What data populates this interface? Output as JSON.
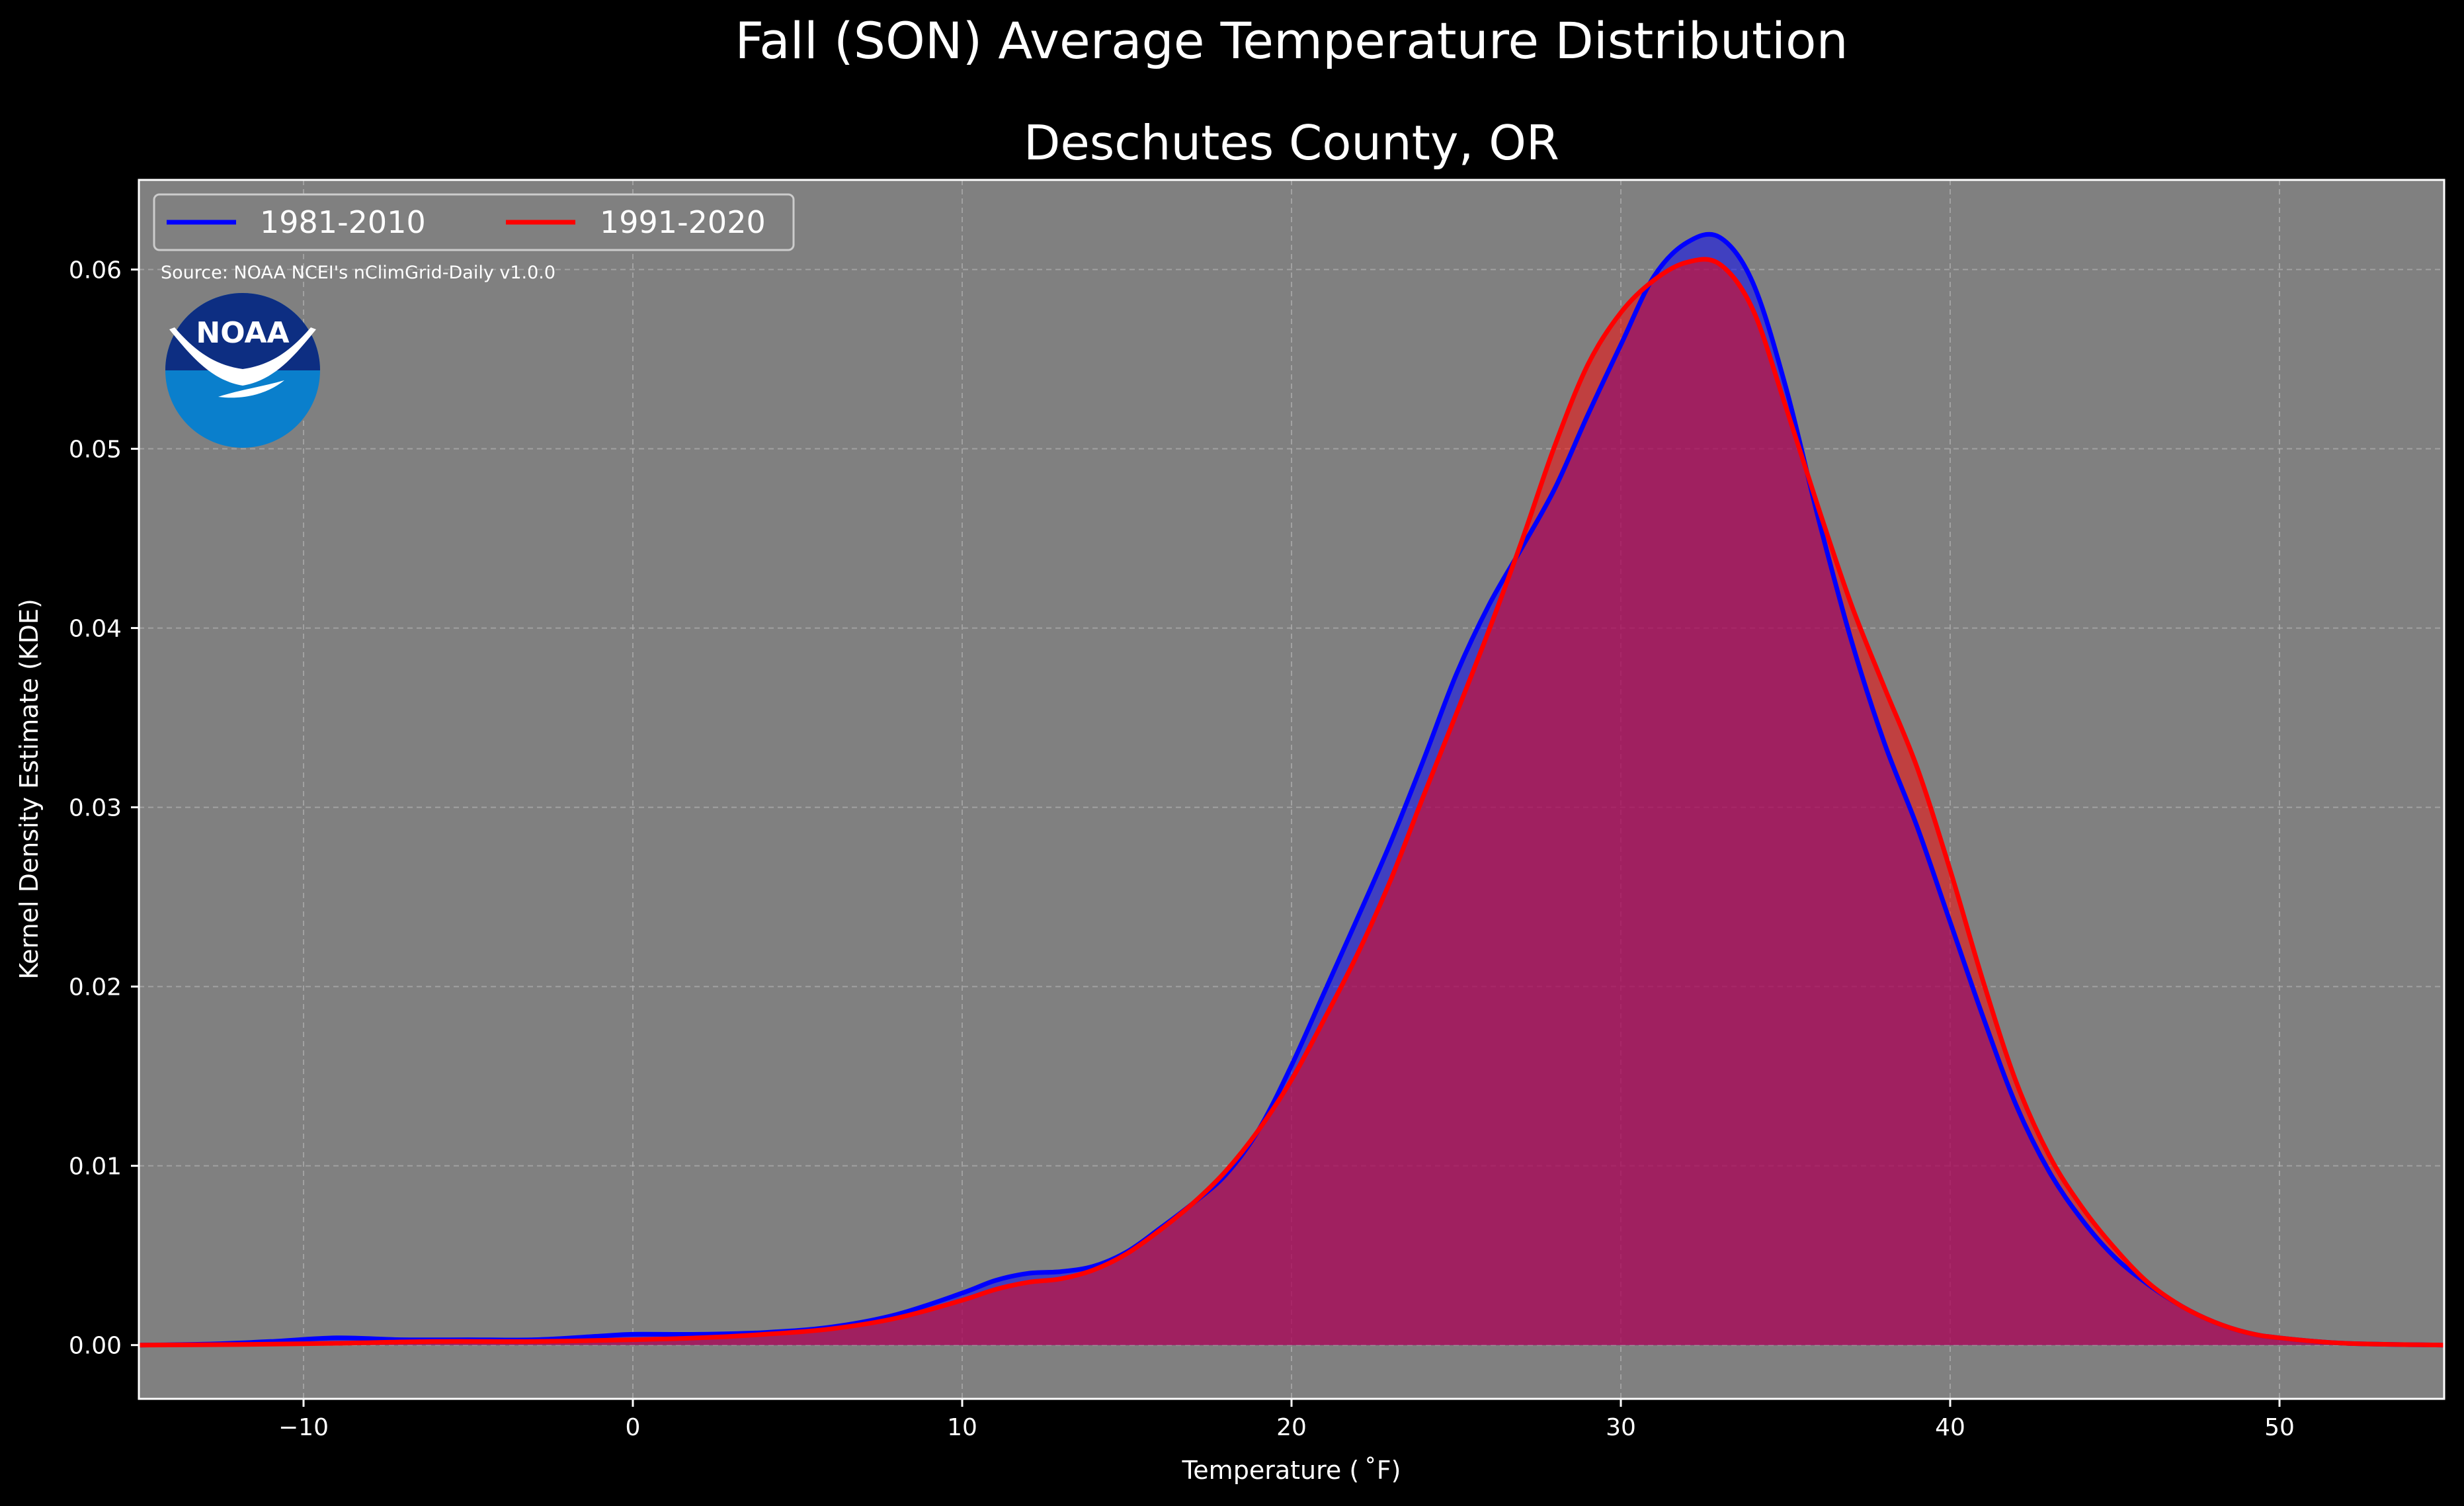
{
  "chart_data": {
    "type": "area",
    "title": "Fall (SON) Average Temperature Distribution",
    "subtitle": "Deschutes County, OR",
    "xlabel": "Temperature ( ˚F)",
    "ylabel": "Kernel Density Estimate (KDE)",
    "source_note": "Source: NOAA NCEI's nClimGrid-Daily v1.0.0",
    "logo_text": "NOAA",
    "xlim": [
      -15,
      55
    ],
    "ylim": [
      -0.003,
      0.065
    ],
    "x_ticks": [
      -10,
      0,
      10,
      20,
      30,
      40,
      50
    ],
    "x_tick_labels": [
      "−10",
      "0",
      "10",
      "20",
      "30",
      "40",
      "50"
    ],
    "y_ticks": [
      0.0,
      0.01,
      0.02,
      0.03,
      0.04,
      0.05,
      0.06
    ],
    "y_tick_labels": [
      "0.00",
      "0.01",
      "0.02",
      "0.03",
      "0.04",
      "0.05",
      "0.06"
    ],
    "grid": true,
    "legend_position": "top-left",
    "background_color": "#808080",
    "figure_color": "#000000",
    "series": [
      {
        "name": "1981-2010",
        "color": "#0000ff",
        "fill_color": "#0000ff",
        "points": [
          [
            -15,
            0
          ],
          [
            -13,
            5e-05
          ],
          [
            -11,
            0.0002
          ],
          [
            -9,
            0.0004
          ],
          [
            -7,
            0.0003
          ],
          [
            -5,
            0.0003
          ],
          [
            -3,
            0.0003
          ],
          [
            -1,
            0.0005
          ],
          [
            0,
            0.0006
          ],
          [
            2,
            0.0006
          ],
          [
            4,
            0.0007
          ],
          [
            6,
            0.001
          ],
          [
            8,
            0.0017
          ],
          [
            10,
            0.0029
          ],
          [
            11,
            0.0036
          ],
          [
            12,
            0.004
          ],
          [
            13,
            0.0041
          ],
          [
            14,
            0.0044
          ],
          [
            15,
            0.0052
          ],
          [
            16,
            0.0065
          ],
          [
            17,
            0.0079
          ],
          [
            18,
            0.0095
          ],
          [
            19,
            0.012
          ],
          [
            20,
            0.0156
          ],
          [
            21,
            0.0197
          ],
          [
            22,
            0.0238
          ],
          [
            23,
            0.028
          ],
          [
            24,
            0.0326
          ],
          [
            25,
            0.0374
          ],
          [
            26,
            0.0413
          ],
          [
            27,
            0.0445
          ],
          [
            28,
            0.0478
          ],
          [
            29,
            0.0519
          ],
          [
            30,
            0.0558
          ],
          [
            31,
            0.0596
          ],
          [
            32,
            0.0615
          ],
          [
            33,
            0.0618
          ],
          [
            34,
            0.0593
          ],
          [
            35,
            0.0535
          ],
          [
            36,
            0.0461
          ],
          [
            37,
            0.0393
          ],
          [
            38,
            0.0336
          ],
          [
            39,
            0.0289
          ],
          [
            40,
            0.0236
          ],
          [
            41,
            0.0183
          ],
          [
            42,
            0.0134
          ],
          [
            43,
            0.0097
          ],
          [
            44,
            0.007
          ],
          [
            45,
            0.0049
          ],
          [
            46,
            0.0034
          ],
          [
            47,
            0.0022
          ],
          [
            48,
            0.0013
          ],
          [
            49,
            0.0007
          ],
          [
            50,
            0.0004
          ],
          [
            52,
            0.0001
          ],
          [
            55,
            0
          ]
        ]
      },
      {
        "name": "1991-2020",
        "color": "#ff0000",
        "fill_color": "#ff0000",
        "points": [
          [
            -15,
            0
          ],
          [
            -12,
            3e-05
          ],
          [
            -9,
            0.0001
          ],
          [
            -6,
            0.0002
          ],
          [
            -3,
            0.0002
          ],
          [
            0,
            0.0003
          ],
          [
            2,
            0.0004
          ],
          [
            4,
            0.0006
          ],
          [
            6,
            0.0009
          ],
          [
            8,
            0.0015
          ],
          [
            10,
            0.0025
          ],
          [
            11,
            0.0031
          ],
          [
            12,
            0.0035
          ],
          [
            13,
            0.0037
          ],
          [
            14,
            0.0042
          ],
          [
            15,
            0.0051
          ],
          [
            16,
            0.0064
          ],
          [
            17,
            0.0079
          ],
          [
            18,
            0.0097
          ],
          [
            19,
            0.012
          ],
          [
            20,
            0.0148
          ],
          [
            21,
            0.0182
          ],
          [
            22,
            0.0218
          ],
          [
            23,
            0.0259
          ],
          [
            24,
            0.0306
          ],
          [
            25,
            0.0352
          ],
          [
            26,
            0.0399
          ],
          [
            27,
            0.0449
          ],
          [
            28,
            0.0502
          ],
          [
            29,
            0.0547
          ],
          [
            30,
            0.0576
          ],
          [
            31,
            0.0594
          ],
          [
            32,
            0.0604
          ],
          [
            33,
            0.0603
          ],
          [
            34,
            0.0578
          ],
          [
            35,
            0.0524
          ],
          [
            36,
            0.0467
          ],
          [
            37,
            0.0413
          ],
          [
            38,
            0.0367
          ],
          [
            39,
            0.0322
          ],
          [
            40,
            0.0265
          ],
          [
            41,
            0.0203
          ],
          [
            42,
            0.0147
          ],
          [
            43,
            0.0106
          ],
          [
            44,
            0.0077
          ],
          [
            45,
            0.0054
          ],
          [
            46,
            0.0035
          ],
          [
            47,
            0.0022
          ],
          [
            48,
            0.0013
          ],
          [
            49,
            0.0007
          ],
          [
            50,
            0.0004
          ],
          [
            52,
            0.0001
          ],
          [
            55,
            0
          ]
        ]
      }
    ]
  }
}
